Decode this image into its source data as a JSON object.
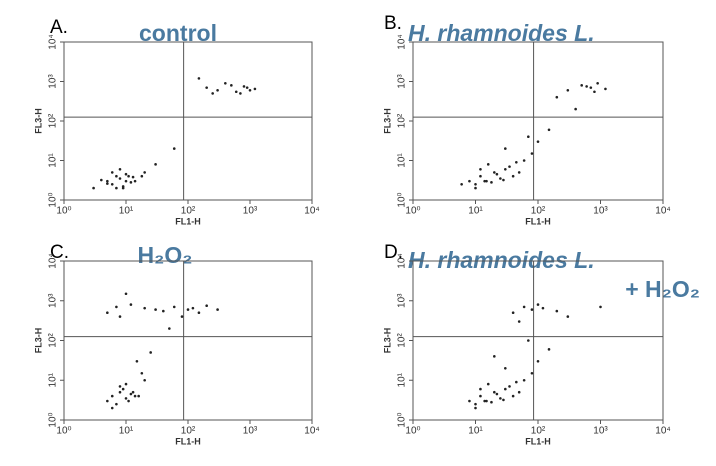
{
  "chart_data": [
    {
      "type": "scatter",
      "panel_label": "A.",
      "title": [
        "control"
      ],
      "xlabel": "FL1-H",
      "ylabel": "FL3-H",
      "log_x": true,
      "log_y": true,
      "color": "#222222",
      "title_color": "#4a7aa0",
      "xlim": [
        1,
        10000
      ],
      "ylim": [
        1,
        10000
      ],
      "xticks": [
        {
          "value": 1,
          "label": "10⁰"
        },
        {
          "value": 10,
          "label": "10¹"
        },
        {
          "value": 100,
          "label": "10²"
        },
        {
          "value": 1000,
          "label": "10³"
        },
        {
          "value": 10000,
          "label": "10⁴"
        }
      ],
      "yticks": [
        {
          "value": 1,
          "label": "10⁰"
        },
        {
          "value": 10,
          "label": "10¹"
        },
        {
          "value": 100,
          "label": "10²"
        },
        {
          "value": 1000,
          "label": "10³"
        },
        {
          "value": 10000,
          "label": "10⁴"
        }
      ],
      "gate": {
        "x": 85,
        "y": 125
      },
      "x": [
        5,
        6,
        7,
        8,
        9,
        10,
        12,
        4,
        6,
        8,
        11,
        14,
        7,
        9,
        5,
        10,
        13,
        20,
        30,
        200,
        300,
        500,
        700,
        900,
        1200,
        400,
        600,
        800,
        1000,
        250,
        150,
        60,
        3,
        18
      ],
      "y": [
        3,
        2.5,
        4,
        3.5,
        2,
        3,
        2.8,
        3.2,
        5,
        6,
        4,
        3,
        2,
        2.2,
        2.6,
        4.5,
        3.8,
        5,
        8,
        700,
        600,
        800,
        500,
        700,
        650,
        900,
        550,
        750,
        600,
        500,
        1200,
        20,
        2,
        4
      ]
    },
    {
      "type": "scatter",
      "panel_label": "B.",
      "title": [
        "H. rhamnoides L."
      ],
      "xlabel": "FL1-H",
      "ylabel": "FL3-H",
      "log_x": true,
      "log_y": true,
      "color": "#222222",
      "title_color": "#4a7aa0",
      "xlim": [
        1,
        10000
      ],
      "ylim": [
        1,
        10000
      ],
      "xticks": [
        {
          "value": 1,
          "label": "10⁰"
        },
        {
          "value": 10,
          "label": "10¹"
        },
        {
          "value": 100,
          "label": "10²"
        },
        {
          "value": 1000,
          "label": "10³"
        },
        {
          "value": 10000,
          "label": "10⁴"
        }
      ],
      "yticks": [
        {
          "value": 1,
          "label": "10⁰"
        },
        {
          "value": 10,
          "label": "10¹"
        },
        {
          "value": 100,
          "label": "10²"
        },
        {
          "value": 1000,
          "label": "10³"
        },
        {
          "value": 10000,
          "label": "10⁴"
        }
      ],
      "gate": {
        "x": 85,
        "y": 125
      },
      "x": [
        8,
        10,
        12,
        15,
        20,
        25,
        30,
        40,
        10,
        14,
        18,
        22,
        35,
        50,
        60,
        80,
        12,
        16,
        28,
        45,
        100,
        150,
        300,
        500,
        700,
        900,
        1200,
        600,
        800,
        400,
        200,
        70,
        30,
        6
      ],
      "y": [
        3,
        2.5,
        4,
        3,
        5,
        3.5,
        6,
        4,
        2,
        3,
        2.8,
        4.5,
        7,
        5,
        10,
        15,
        6,
        8,
        3.2,
        9,
        30,
        60,
        600,
        800,
        700,
        900,
        650,
        750,
        550,
        200,
        400,
        40,
        20,
        2.5
      ]
    },
    {
      "type": "scatter",
      "panel_label": "C.",
      "title": [
        "H₂O₂"
      ],
      "xlabel": "FL1-H",
      "ylabel": "FL3-H",
      "log_x": true,
      "log_y": true,
      "color": "#222222",
      "title_color": "#4a7aa0",
      "xlim": [
        1,
        10000
      ],
      "ylim": [
        1,
        10000
      ],
      "xticks": [
        {
          "value": 1,
          "label": "10⁰"
        },
        {
          "value": 10,
          "label": "10¹"
        },
        {
          "value": 100,
          "label": "10²"
        },
        {
          "value": 1000,
          "label": "10³"
        },
        {
          "value": 10000,
          "label": "10⁴"
        }
      ],
      "yticks": [
        {
          "value": 1,
          "label": "10⁰"
        },
        {
          "value": 10,
          "label": "10¹"
        },
        {
          "value": 100,
          "label": "10²"
        },
        {
          "value": 1000,
          "label": "10³"
        },
        {
          "value": 10000,
          "label": "10⁴"
        }
      ],
      "gate": {
        "x": 85,
        "y": 125
      },
      "x": [
        5,
        6,
        8,
        10,
        12,
        7,
        9,
        11,
        14,
        6,
        8,
        10,
        13,
        16,
        20,
        5,
        7,
        30,
        8,
        12,
        20,
        40,
        60,
        100,
        150,
        200,
        300,
        15,
        25,
        80,
        120,
        10,
        50,
        18
      ],
      "y": [
        3,
        4,
        5,
        3.5,
        4.5,
        2.5,
        6,
        3,
        4,
        2,
        7,
        8,
        5,
        4,
        10,
        500,
        700,
        600,
        400,
        800,
        650,
        550,
        700,
        600,
        500,
        750,
        600,
        30,
        50,
        400,
        650,
        1500,
        200,
        15
      ]
    },
    {
      "type": "scatter",
      "panel_label": "D.",
      "title": [
        "H. rhamnoides L.",
        "+ H₂O₂"
      ],
      "xlabel": "FL1-H",
      "ylabel": "FL3-H",
      "log_x": true,
      "log_y": true,
      "color": "#222222",
      "title_color": "#4a7aa0",
      "xlim": [
        1,
        10000
      ],
      "ylim": [
        1,
        10000
      ],
      "xticks": [
        {
          "value": 1,
          "label": "10⁰"
        },
        {
          "value": 10,
          "label": "10¹"
        },
        {
          "value": 100,
          "label": "10²"
        },
        {
          "value": 1000,
          "label": "10³"
        },
        {
          "value": 10000,
          "label": "10⁴"
        }
      ],
      "yticks": [
        {
          "value": 1,
          "label": "10⁰"
        },
        {
          "value": 10,
          "label": "10¹"
        },
        {
          "value": 100,
          "label": "10²"
        },
        {
          "value": 1000,
          "label": "10³"
        },
        {
          "value": 10000,
          "label": "10⁴"
        }
      ],
      "gate": {
        "x": 85,
        "y": 125
      },
      "x": [
        8,
        10,
        12,
        15,
        20,
        25,
        30,
        40,
        10,
        14,
        18,
        22,
        35,
        50,
        60,
        80,
        12,
        16,
        28,
        45,
        100,
        150,
        40,
        60,
        80,
        120,
        200,
        300,
        50,
        100,
        1000,
        20,
        30,
        70
      ],
      "y": [
        3,
        2.5,
        4,
        3,
        5,
        3.5,
        6,
        4,
        2,
        3,
        2.8,
        4.5,
        7,
        5,
        10,
        15,
        6,
        8,
        3.2,
        9,
        30,
        60,
        500,
        700,
        600,
        650,
        550,
        400,
        300,
        800,
        700,
        40,
        20,
        100
      ]
    }
  ]
}
